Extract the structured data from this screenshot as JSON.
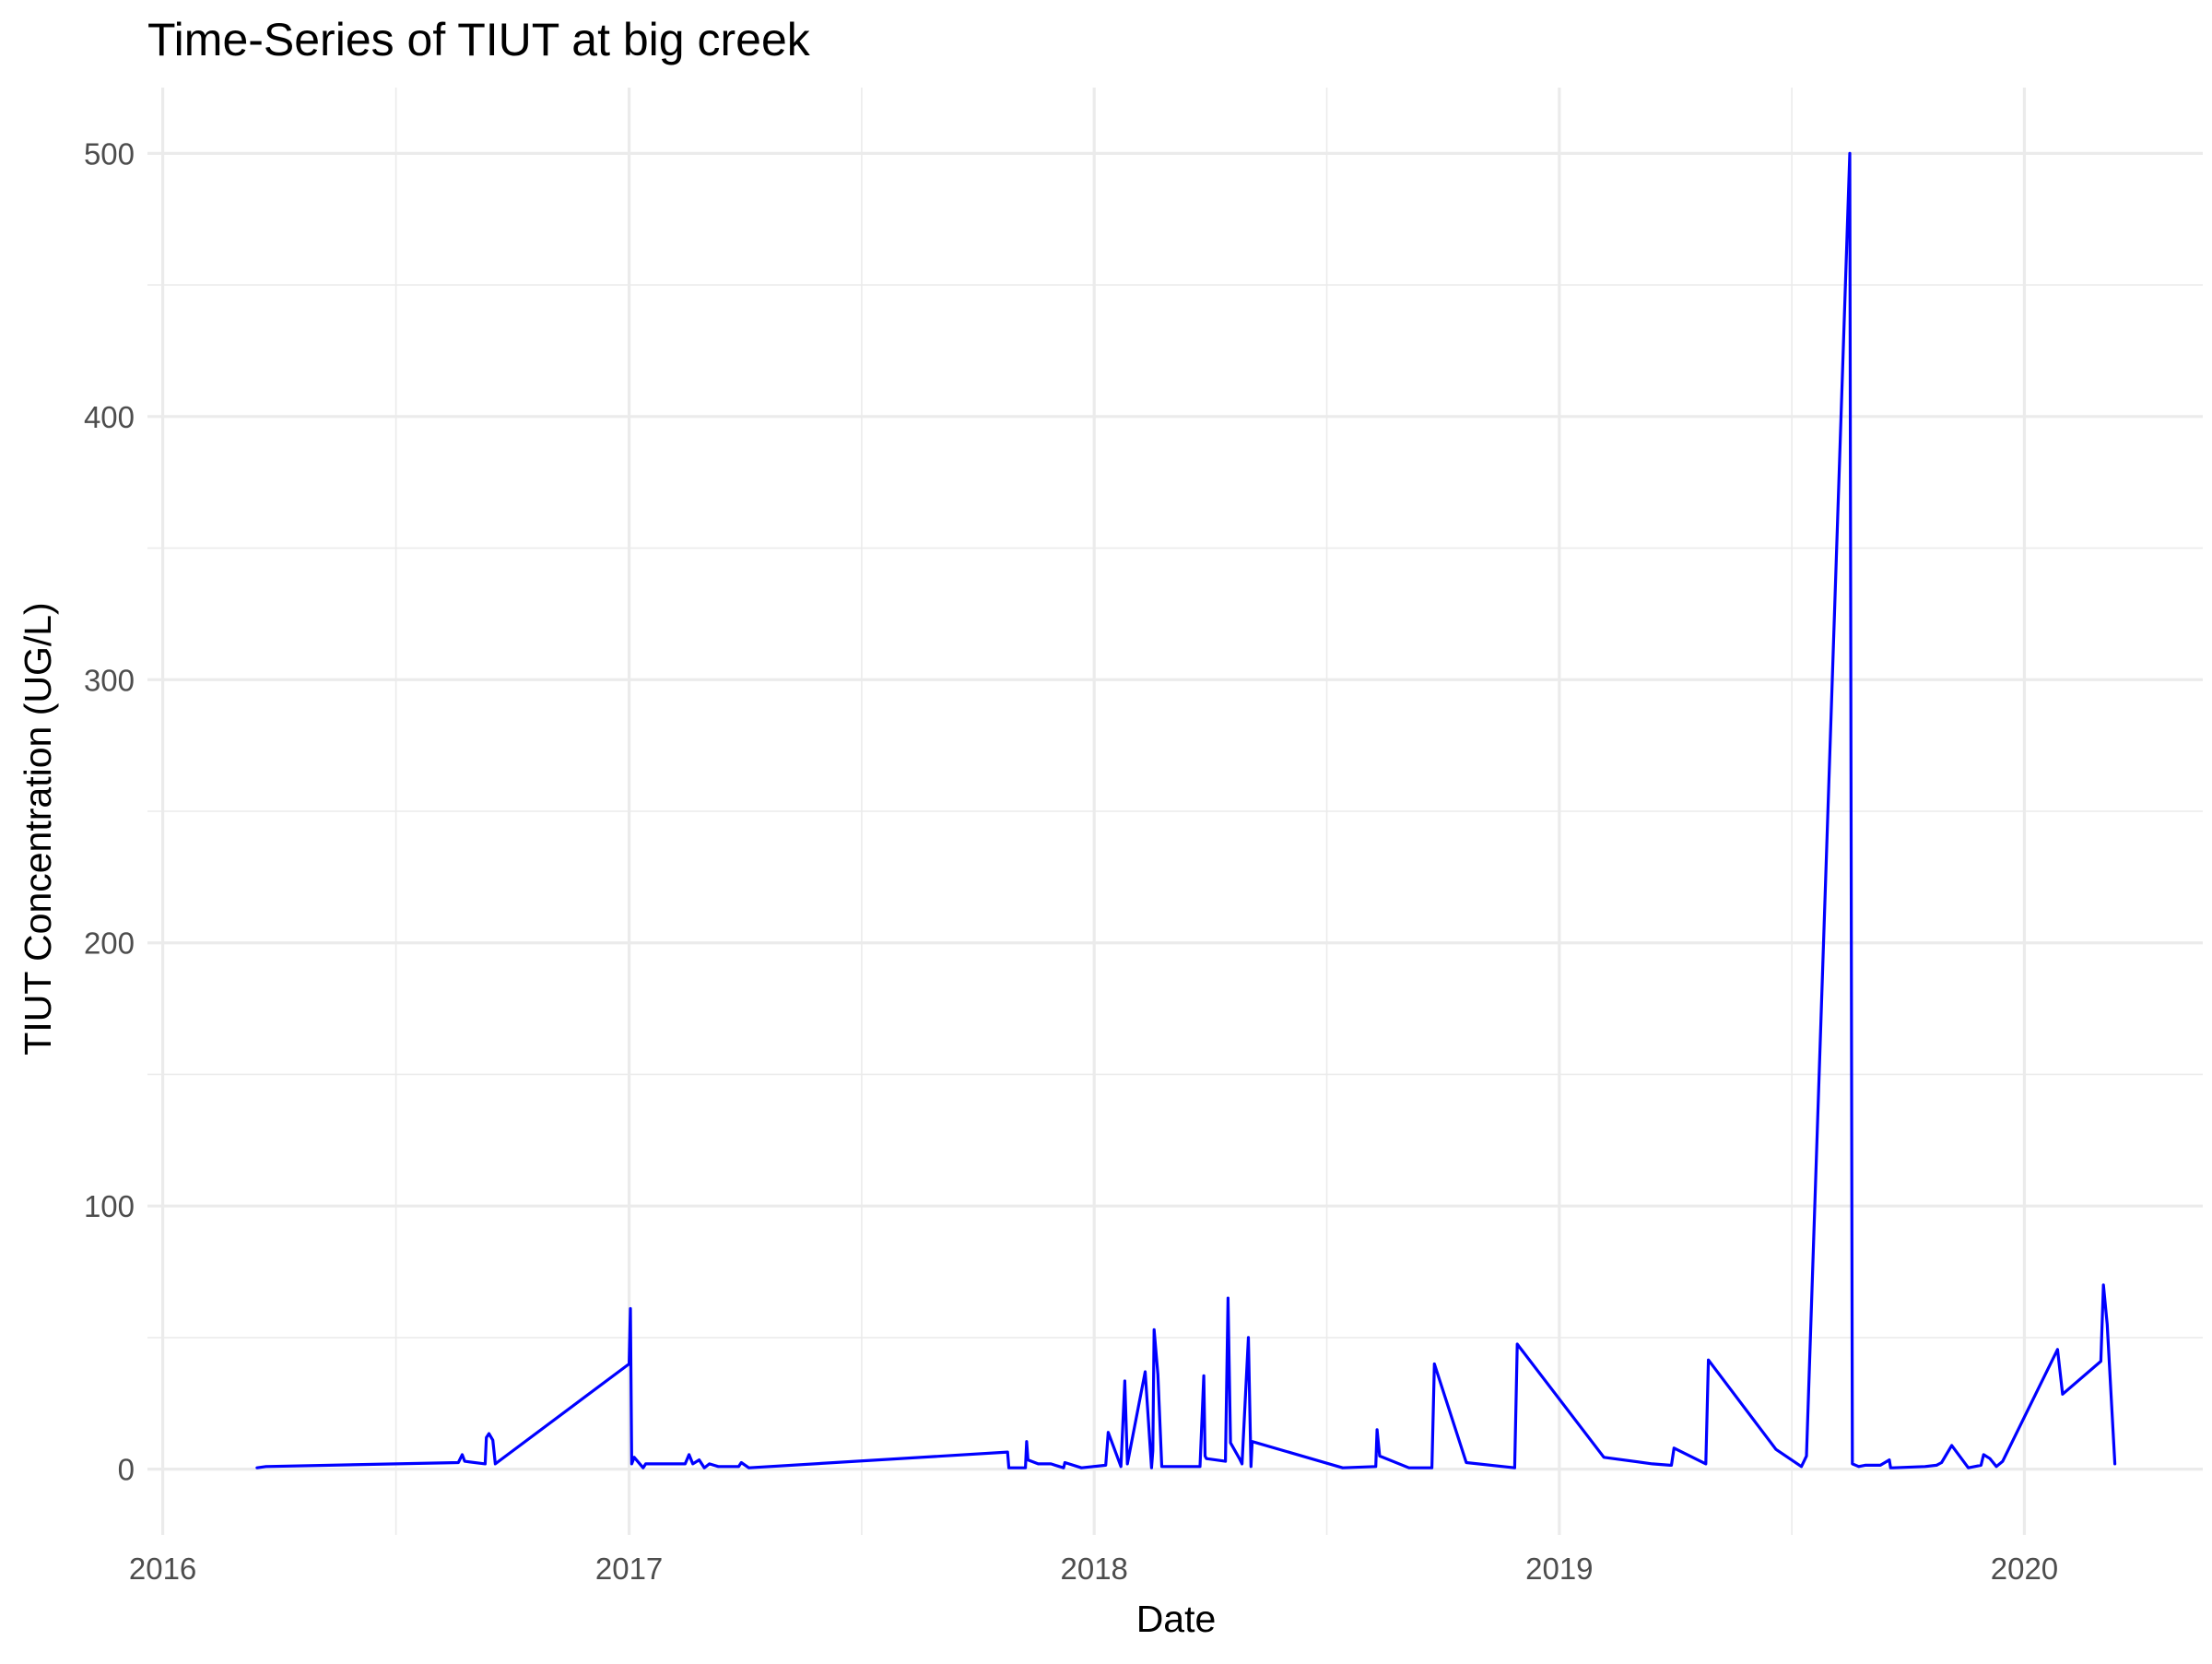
{
  "chart_data": {
    "type": "line",
    "title": "Time-Series of TIUT at big creek",
    "xlabel": "Date",
    "ylabel": "TIUT Concentration (UG/L)",
    "x_scale": "date",
    "xlim": [
      "2015-12-20",
      "2020-05-20"
    ],
    "ylim": [
      -25,
      525
    ],
    "x_ticks": [
      "2016-01-01",
      "2017-01-01",
      "2018-01-01",
      "2019-01-01",
      "2020-01-01"
    ],
    "x_tick_labels": [
      "2016",
      "2017",
      "2018",
      "2019",
      "2020"
    ],
    "y_ticks": [
      0,
      100,
      200,
      300,
      400,
      500
    ],
    "y_tick_labels": [
      "0",
      "100",
      "200",
      "300",
      "400",
      "500"
    ],
    "grid": true,
    "line_color": "#0000ff",
    "series": [
      {
        "x": [
          "2016-03-15",
          "2016-03-22",
          "2016-08-20",
          "2016-08-23",
          "2016-08-25",
          "2016-09-10",
          "2016-09-11",
          "2016-09-13",
          "2016-09-16",
          "2016-09-18",
          "2017-01-01",
          "2017-01-02",
          "2017-01-03",
          "2017-01-05",
          "2017-01-12",
          "2017-01-14",
          "2017-01-23",
          "2017-02-14",
          "2017-02-17",
          "2017-02-20",
          "2017-02-25",
          "2017-03-01",
          "2017-03-05",
          "2017-03-12",
          "2017-03-28",
          "2017-03-30",
          "2017-04-05",
          "2017-10-25",
          "2017-10-26",
          "2017-11-08",
          "2017-11-09",
          "2017-11-10",
          "2017-11-18",
          "2017-11-28",
          "2017-12-08",
          "2017-12-09",
          "2017-12-22",
          "2018-01-10",
          "2018-01-12",
          "2018-01-22",
          "2018-01-25",
          "2018-01-27",
          "2018-02-10",
          "2018-02-15",
          "2018-02-16",
          "2018-02-17",
          "2018-02-20",
          "2018-02-23",
          "2018-03-25",
          "2018-03-28",
          "2018-03-29",
          "2018-03-30",
          "2018-04-14",
          "2018-04-16",
          "2018-04-18",
          "2018-04-25",
          "2018-04-27",
          "2018-05-02",
          "2018-05-04",
          "2018-05-05",
          "2018-07-15",
          "2018-08-10",
          "2018-08-11",
          "2018-08-13",
          "2018-09-05",
          "2018-09-23",
          "2018-09-25",
          "2018-10-20",
          "2018-11-27",
          "2018-11-29",
          "2019-02-05",
          "2019-03-15",
          "2019-03-29",
          "2019-03-30",
          "2019-04-01",
          "2019-04-26",
          "2019-04-28",
          "2019-06-20",
          "2019-07-10",
          "2019-07-12",
          "2019-07-14",
          "2019-08-17",
          "2019-08-19",
          "2019-08-24",
          "2019-08-29",
          "2019-09-10",
          "2019-09-17",
          "2019-09-18",
          "2019-09-20",
          "2019-10-15",
          "2019-10-24",
          "2019-10-28",
          "2019-11-05",
          "2019-11-18",
          "2019-11-28",
          "2019-11-30",
          "2019-12-05",
          "2019-12-10",
          "2019-12-15",
          "2020-01-27",
          "2020-01-31",
          "2020-03-01",
          "2020-03-03",
          "2020-03-06",
          "2020-03-12"
        ],
        "y": [
          0.5,
          1,
          2.5,
          5.5,
          3,
          2,
          12,
          13.5,
          11,
          2,
          40,
          61,
          2,
          4.5,
          0.5,
          2,
          2,
          2,
          5.5,
          2,
          3.5,
          0.5,
          2,
          1,
          1,
          2.5,
          0.5,
          6.5,
          0.5,
          0.5,
          10.5,
          3.5,
          2,
          2,
          0.5,
          2.5,
          0.5,
          1.5,
          14,
          1,
          33.5,
          2,
          37,
          0.5,
          7,
          53,
          36,
          1,
          1,
          35.5,
          5,
          4,
          3,
          65,
          10,
          4,
          2,
          50,
          1,
          10.5,
          0.5,
          1,
          15,
          5,
          0.5,
          0.5,
          40,
          2.5,
          0.5,
          47.5,
          4.5,
          2,
          1.5,
          1.5,
          8,
          2,
          41.5,
          7.5,
          1,
          3,
          5,
          500,
          2,
          1,
          1.5,
          1.5,
          3.5,
          0.5,
          0.5,
          1,
          1.5,
          2.5,
          9,
          0.5,
          1.5,
          5.5,
          4,
          1,
          3,
          45.5,
          28.5,
          41,
          70,
          55,
          2
        ]
      }
    ]
  }
}
